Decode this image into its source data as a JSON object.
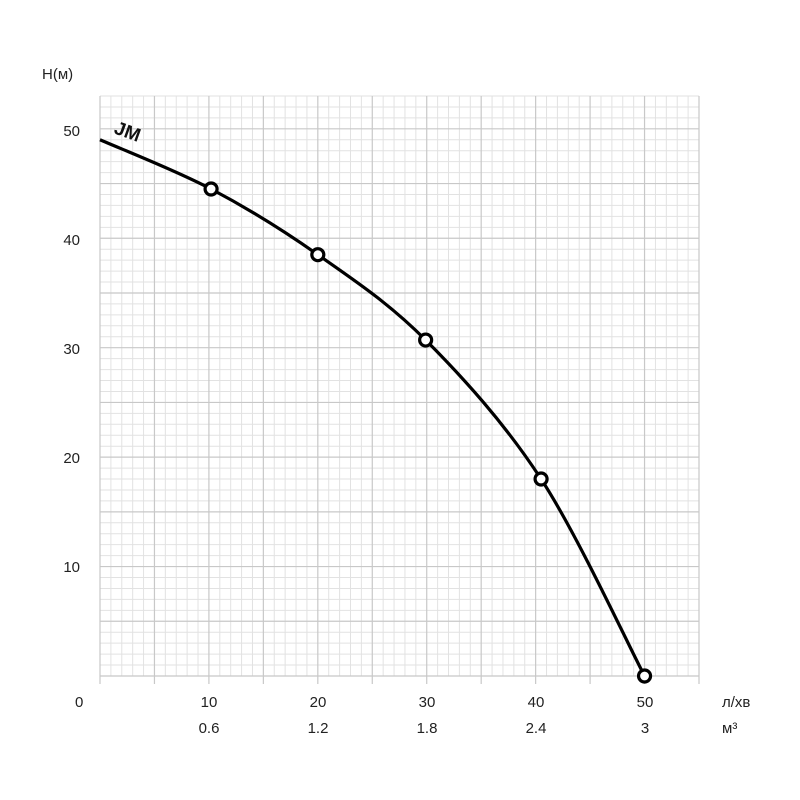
{
  "chart_data": {
    "type": "line",
    "ylabel": "H(м)",
    "xlabel_primary": "л/хв",
    "xlabel_secondary": "м³",
    "origin_label": "0",
    "xlim": [
      0,
      55
    ],
    "ylim": [
      0,
      53
    ],
    "x_ticks": [
      10,
      20,
      30,
      40,
      50
    ],
    "x_tick_labels": [
      "10",
      "20",
      "30",
      "40",
      "50"
    ],
    "x_secondary_tick_labels": [
      "0.6",
      "1.2",
      "1.8",
      "2.4",
      "3"
    ],
    "y_ticks": [
      10,
      20,
      30,
      40,
      50
    ],
    "y_tick_labels": [
      "10",
      "20",
      "30",
      "40",
      "50"
    ],
    "grid": true,
    "series": [
      {
        "name": "JM",
        "x": [
          0,
          10.2,
          20,
          29.9,
          40.5,
          50
        ],
        "y": [
          49,
          44.5,
          38.5,
          30.7,
          18,
          0
        ],
        "markers": [
          {
            "x": 10.2,
            "y": 44.5
          },
          {
            "x": 20,
            "y": 38.5
          },
          {
            "x": 29.9,
            "y": 30.7
          },
          {
            "x": 40.5,
            "y": 18
          },
          {
            "x": 50,
            "y": 0
          }
        ]
      }
    ],
    "colors": {
      "line": "#000000",
      "grid_major": "#c8c8c8",
      "grid_minor": "#e2e2e2"
    }
  }
}
